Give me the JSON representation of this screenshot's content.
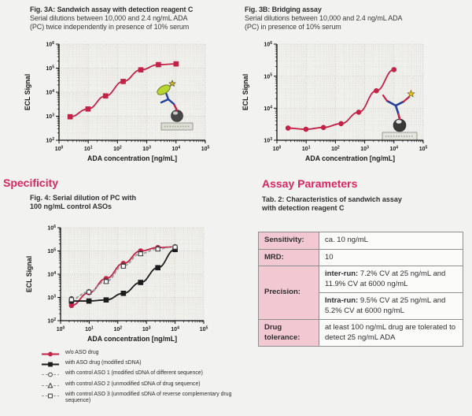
{
  "colors": {
    "accent_heading": "#d92562",
    "curve_red": "#c32347",
    "curve_black": "#1c1c1c",
    "control_gray": "#8c8c8c",
    "table_label_bg": "#f2c8d3",
    "table_value_bg": "#fbfbfa",
    "table_border": "#8f8f8f",
    "plot_bg": "#efefec"
  },
  "fig3a_caption": {
    "title": "Fig. 3A: Sandwich assay with detection reagent C",
    "line1": "Serial dilutions between 10,000 and 2.4 ng/mL ADA",
    "line2": "(PC) twice independently in presence of 10% serum"
  },
  "fig3b_caption": {
    "title": "Fig. 3B: Bridging assay",
    "line1": "Serial dilutions between 10,000 and 2.4 ng/mL ADA",
    "line2": "(PC) in presence of 10% serum"
  },
  "specificity_heading": "Specificity",
  "fig4_caption": {
    "line1": "Fig. 4: Serial dilution of PC with",
    "line2": "100 ng/mL control ASOs"
  },
  "assay_heading": "Assay Parameters",
  "tab2_caption": {
    "line1": "Tab. 2: Characteristics of sandwich assay",
    "line2": "with detection reagent C"
  },
  "table": {
    "rows": [
      {
        "label": "Sensitivity:",
        "value": "ca. 10 ng/mL"
      },
      {
        "label": "MRD:",
        "value": "10"
      },
      {
        "label": "Precision:"
      },
      {
        "label": "Drug tolerance:",
        "value": "at least 100 ng/mL drug are tolerated to detect 25 ng/mL ADA"
      }
    ],
    "precision": {
      "inter_lead": "inter-run:",
      "inter_text": " 7.2% CV at 25 ng/mL and 11.9% CV at 6000 ng/mL",
      "intra_lead": "Intra-run:",
      "intra_text": " 9.5% CV at 25 ng/mL and 5.2% CV at 6000 ng/mL"
    }
  },
  "fig4_legend": [
    {
      "label": "w/o ASO drug",
      "shape": "circle",
      "filled": true,
      "color": "#c32347",
      "line": "solid"
    },
    {
      "label": "with ASO drug (modified sDNA)",
      "shape": "square",
      "filled": true,
      "color": "#1c1c1c",
      "line": "solid"
    },
    {
      "label": "with control ASO 1 (modified sDNA of different sequence)",
      "shape": "circle",
      "filled": false,
      "color": "#3a3a3a",
      "line": "dashed"
    },
    {
      "label": "with control ASO 2 (unmodified sDNA of drug sequence)",
      "shape": "triangle",
      "filled": false,
      "color": "#3a3a3a",
      "line": "dashed"
    },
    {
      "label": "with control ASO 3 (unmodified sDNA of reverse complementary drug sequence)",
      "shape": "square",
      "filled": false,
      "color": "#3a3a3a",
      "line": "dashed"
    }
  ],
  "chart_data": [
    {
      "id": "fig3a",
      "type": "line",
      "title": "Fig. 3A: Sandwich assay with detection reagent C",
      "xlabel": "ADA concentration [ng/mL]",
      "ylabel": "ECL Signal",
      "x_scale": "log",
      "y_scale": "log",
      "xlim_log": [
        0,
        5
      ],
      "ylim_log": [
        2,
        6
      ],
      "x_ticks": [
        "10^0",
        "10^1",
        "10^2",
        "10^3",
        "10^4",
        "10^5"
      ],
      "y_ticks": [
        "10^2",
        "10^3",
        "10^4",
        "10^5",
        "10^6"
      ],
      "grid": true,
      "icon": "sandwich-assay-icon",
      "series": [
        {
          "name": "ADA serial dilution (PC)",
          "color": "#c32347",
          "marker": "square",
          "filled": true,
          "line": "solid",
          "x": [
            2.4,
            9.8,
            39,
            156,
            625,
            2500,
            10000
          ],
          "y": [
            950,
            2000,
            7000,
            28000,
            85000,
            140000,
            150000
          ]
        }
      ]
    },
    {
      "id": "fig3b",
      "type": "line",
      "title": "Fig. 3B: Bridging assay",
      "xlabel": "ADA concentration [ng/mL]",
      "ylabel": "ECL Signal",
      "x_scale": "log",
      "y_scale": "log",
      "xlim_log": [
        0,
        5
      ],
      "ylim_log": [
        3,
        6
      ],
      "x_ticks": [
        "10^0",
        "10^1",
        "10^2",
        "10^3",
        "10^4",
        "10^5"
      ],
      "y_ticks": [
        "10^3",
        "10^4",
        "10^5",
        "10^6"
      ],
      "grid": true,
      "icon": "bridging-assay-icon",
      "series": [
        {
          "name": "ADA serial dilution (PC)",
          "color": "#c32347",
          "marker": "circle",
          "filled": true,
          "line": "solid",
          "x": [
            2.4,
            9.8,
            39,
            156,
            625,
            2500,
            10000
          ],
          "y": [
            2400,
            2200,
            2500,
            3300,
            7500,
            35000,
            160000
          ]
        }
      ]
    },
    {
      "id": "fig4",
      "type": "line",
      "title": "Fig. 4: Serial dilution of PC with 100 ng/mL control ASOs",
      "xlabel": "ADA concentration [ng/mL]",
      "ylabel": "ECL Signal",
      "x_scale": "log",
      "y_scale": "log",
      "xlim_log": [
        0,
        5
      ],
      "ylim_log": [
        2,
        6
      ],
      "x_ticks": [
        "10^0",
        "10^1",
        "10^2",
        "10^3",
        "10^4",
        "10^5"
      ],
      "y_ticks": [
        "10^2",
        "10^3",
        "10^4",
        "10^5",
        "10^6"
      ],
      "grid": true,
      "icon": null,
      "series": [
        {
          "name": "w/o ASO drug",
          "color": "#c32347",
          "marker": "circle",
          "filled": true,
          "line": "solid",
          "x": [
            2.4,
            9.8,
            39,
            156,
            625,
            2500,
            10000
          ],
          "y": [
            450,
            1600,
            6500,
            29000,
            100000,
            140000,
            150000
          ]
        },
        {
          "name": "with ASO drug (modified sDNA)",
          "color": "#1c1c1c",
          "marker": "square",
          "filled": true,
          "line": "solid",
          "x": [
            2.4,
            9.8,
            39,
            156,
            625,
            2500,
            10000
          ],
          "y": [
            700,
            700,
            780,
            1500,
            4400,
            19000,
            115000
          ]
        },
        {
          "name": "with control ASO 1 (modified sDNA of different sequence)",
          "color": "#8c8c8c",
          "marker": "circle",
          "filled": false,
          "line": "dashed",
          "x": [
            2.4,
            9.8,
            39,
            156,
            625,
            2500,
            10000
          ],
          "y": [
            900,
            1800,
            5200,
            24000,
            80000,
            125000,
            150000
          ]
        },
        {
          "name": "with control ASO 2 (unmodified sDNA of drug sequence)",
          "color": "#8c8c8c",
          "marker": "triangle",
          "filled": false,
          "line": "dashed",
          "x": [
            2.4,
            9.8,
            39,
            156,
            625,
            2500,
            10000
          ],
          "y": [
            850,
            1750,
            5000,
            23000,
            78000,
            122000,
            148000
          ]
        },
        {
          "name": "with control ASO 3 (unmodified sDNA of reverse complementary drug sequence)",
          "color": "#8c8c8c",
          "marker": "square",
          "filled": false,
          "line": "dashed",
          "x": [
            2.4,
            9.8,
            39,
            156,
            625,
            2500,
            10000
          ],
          "y": [
            800,
            1700,
            4800,
            22000,
            75000,
            120000,
            146000
          ]
        }
      ]
    }
  ]
}
